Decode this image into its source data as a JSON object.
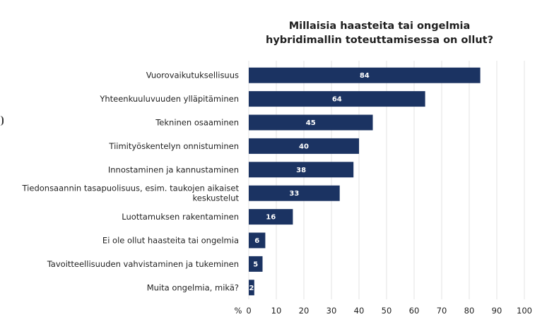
{
  "chart_data": {
    "type": "bar",
    "orientation": "horizontal",
    "title_lines": [
      "Millaisia haasteita tai ongelmia",
      "hybridimallin toteuttamisessa on ollut?"
    ],
    "categories": [
      [
        "Vuorovaikutuksellisuus"
      ],
      [
        "Yhteenkuuluvuuden ylläpitäminen"
      ],
      [
        "Tekninen osaaminen"
      ],
      [
        "Tiimityöskentelyn onnistuminen"
      ],
      [
        "Innostaminen ja kannustaminen"
      ],
      [
        "Tiedonsaannin tasapuolisuus, esim. taukojen aikaiset",
        "keskustelut"
      ],
      [
        "Luottamuksen rakentaminen"
      ],
      [
        "Ei ole ollut haasteita tai ongelmia"
      ],
      [
        "Tavoitteellisuuden vahvistaminen ja tukeminen"
      ],
      [
        "Muita ongelmia, mikä?"
      ]
    ],
    "values": [
      84,
      64,
      45,
      40,
      38,
      33,
      16,
      6,
      5,
      2
    ],
    "xlim": [
      0,
      100
    ],
    "xticks": [
      0,
      10,
      20,
      30,
      40,
      50,
      60,
      70,
      80,
      90,
      100
    ],
    "xunit": "%",
    "grid": "vertical",
    "bar_color": "#1b3362",
    "grid_color": "#e3e3e3",
    "value_label_color": "#ffffff"
  }
}
